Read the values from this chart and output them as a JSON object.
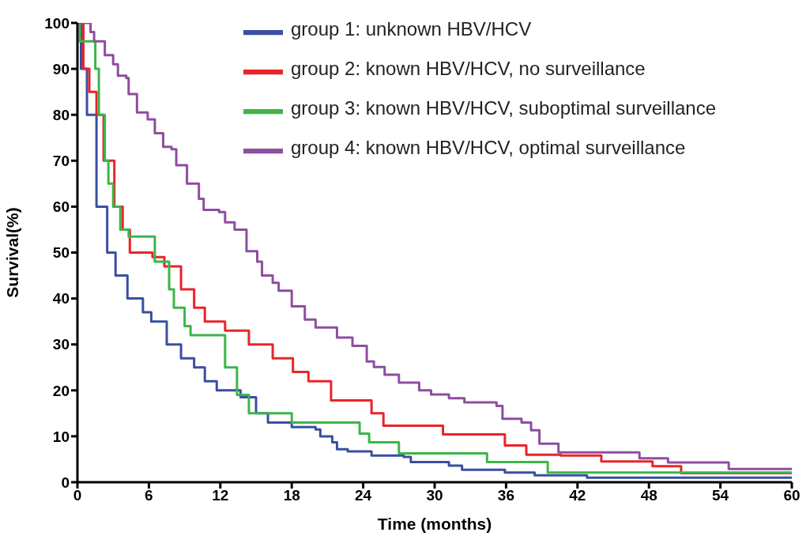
{
  "chart_data": {
    "type": "step",
    "xlabel": "Time (months)",
    "ylabel": "Survival(%)",
    "xlim": [
      0,
      60
    ],
    "xticks": [
      0,
      6,
      12,
      18,
      24,
      30,
      36,
      42,
      48,
      54,
      60
    ],
    "ylim": [
      0,
      100
    ],
    "yticks": [
      0,
      10,
      20,
      30,
      40,
      50,
      60,
      70,
      80,
      90,
      100
    ],
    "grid": false,
    "legend": "top right",
    "marker": "none",
    "line_style": "solid",
    "series": [
      {
        "name": "group 1: unknown HBV/HCV",
        "color": "#3a4fa0",
        "x": [
          0,
          0.3,
          0.8,
          1.6,
          2.5,
          3.2,
          4.2,
          5.5,
          6.2,
          7.5,
          8.7,
          9.8,
          10.7,
          11.7,
          13.7,
          15,
          16,
          18,
          20,
          20.4,
          21.4,
          21.8,
          22.7,
          24.7,
          27.4,
          28,
          31.2,
          32.3,
          35.9,
          38.4,
          42.8,
          60
        ],
        "values": [
          100,
          90,
          80,
          60,
          50,
          45,
          40,
          37,
          35,
          30,
          27,
          25,
          22,
          20,
          18.5,
          15,
          13,
          12,
          11.5,
          10,
          8.7,
          7.2,
          6.7,
          5.8,
          5.5,
          4.4,
          3.6,
          2.7,
          2.1,
          1.5,
          1,
          1
        ]
      },
      {
        "name": "group 2: known HBV/HCV, no surveillance",
        "color": "#e8252a",
        "x": [
          0,
          0.5,
          1,
          1.6,
          2.2,
          3.1,
          3.8,
          4.4,
          6.3,
          7.3,
          8.7,
          9.8,
          10.7,
          12.4,
          14.4,
          16.4,
          18.1,
          19.4,
          21.3,
          24.7,
          25.7,
          30.7,
          35.9,
          37.7,
          40.6,
          44,
          48.3,
          50.7,
          60
        ],
        "values": [
          100,
          90,
          85,
          80,
          70,
          60,
          55,
          50,
          49,
          47,
          42,
          38,
          35,
          33,
          30,
          27,
          24,
          22,
          17.8,
          15,
          12.3,
          10.4,
          8,
          6,
          5.8,
          4.5,
          3.5,
          2,
          2
        ]
      },
      {
        "name": "group 3: known HBV/HCV, suboptimal surveillance",
        "color": "#3db54a",
        "x": [
          0,
          0.2,
          1.5,
          1.8,
          2.3,
          2.6,
          3,
          3.6,
          4.3,
          6.5,
          7.7,
          8.1,
          9,
          9.5,
          12.4,
          13.4,
          14.4,
          18,
          23.7,
          24.5,
          27,
          34.4,
          39.5,
          60
        ],
        "values": [
          100,
          96,
          90,
          80,
          70,
          65,
          60,
          55,
          53.5,
          48,
          42,
          38,
          34,
          32,
          25,
          19,
          15,
          13,
          10.6,
          8.7,
          6.3,
          4.4,
          2.1,
          2.1
        ]
      },
      {
        "name": "group 4: known HBV/HCV, optimal surveillance",
        "color": "#8e4ea0",
        "x": [
          0,
          0.5,
          1.1,
          1.4,
          2.3,
          3,
          3.4,
          4.1,
          4.3,
          5,
          5.9,
          6.5,
          7.2,
          7.9,
          8.3,
          9.2,
          10.2,
          10.6,
          11.9,
          12.4,
          13.2,
          14.2,
          15.1,
          15.5,
          16.4,
          16.9,
          18,
          19.1,
          20,
          21.8,
          23.1,
          24.3,
          24.9,
          25.8,
          27,
          28.7,
          29.7,
          31.2,
          32.5,
          35.2,
          35.7,
          37.3,
          38.1,
          38.8,
          40.4,
          47.2,
          49.6,
          54.7,
          60
        ],
        "values": [
          100,
          100,
          98,
          96,
          93,
          91,
          88.5,
          88,
          84.5,
          80.5,
          79,
          76,
          73,
          72.5,
          69,
          65,
          61.7,
          59.3,
          58.8,
          56.6,
          55,
          50.3,
          48,
          45,
          43.4,
          41.7,
          38.3,
          35.4,
          33.7,
          31.5,
          29.7,
          26.3,
          25.1,
          23.4,
          21.7,
          20,
          19.1,
          18.3,
          17.4,
          16.6,
          13.8,
          13,
          11.3,
          8.4,
          6.5,
          5.2,
          4.3,
          2.9,
          2.9
        ]
      }
    ]
  }
}
